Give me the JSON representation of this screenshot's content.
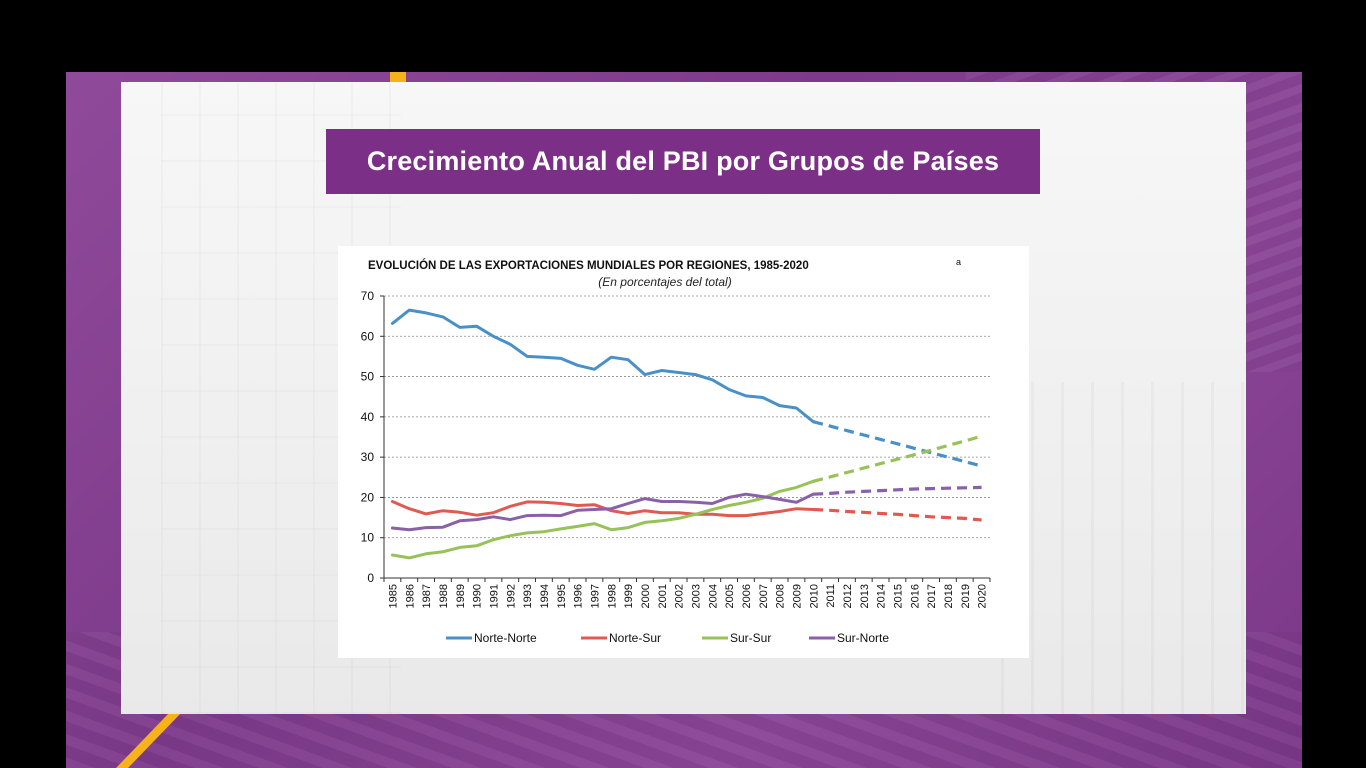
{
  "slide": {
    "title": "Crecimiento Anual del PBI por Grupos de Países"
  },
  "colors": {
    "slide_background": "#8a4596",
    "title_box": "#7b2f86",
    "accent": "#f5b21a"
  },
  "chart_data": {
    "type": "line",
    "title": "EVOLUCIÓN DE LAS EXPORTACIONES MUNDIALES POR REGIONES, 1985-2020",
    "title_superscript": "a",
    "subtitle": "(En porcentajes del total)",
    "ylim": [
      0,
      70
    ],
    "yticks": [
      0,
      10,
      20,
      30,
      40,
      50,
      60,
      70
    ],
    "grid": "horizontal dashed",
    "legend_position": "bottom",
    "x": [
      1985,
      1986,
      1987,
      1988,
      1989,
      1990,
      1991,
      1992,
      1993,
      1994,
      1995,
      1996,
      1997,
      1998,
      1999,
      2000,
      2001,
      2002,
      2003,
      2004,
      2005,
      2006,
      2007,
      2008,
      2009,
      2010,
      2011,
      2012,
      2013,
      2014,
      2015,
      2016,
      2017,
      2018,
      2019,
      2020
    ],
    "projection_from": 2010,
    "series": [
      {
        "name": "Norte-Norte",
        "color": "#4a90c8",
        "values": [
          63.2,
          66.5,
          65.8,
          64.8,
          62.2,
          62.5,
          60,
          58,
          55,
          54.8,
          54.5,
          52.8,
          51.8,
          54.8,
          54.2,
          50.5,
          51.5,
          51,
          50.5,
          49.2,
          46.8,
          45.2,
          44.8,
          42.8,
          42.2,
          38.8,
          37.7,
          36.6,
          35.5,
          34.4,
          33.3,
          32.2,
          31.1,
          30,
          28.9,
          27.8
        ]
      },
      {
        "name": "Norte-Sur",
        "color": "#e05a50",
        "values": [
          19,
          17.2,
          15.9,
          16.7,
          16.3,
          15.6,
          16.2,
          17.8,
          18.9,
          18.8,
          18.5,
          18,
          18.2,
          16.7,
          16,
          16.7,
          16.2,
          16.2,
          15.8,
          15.8,
          15.5,
          15.5,
          16,
          16.5,
          17.2,
          17,
          16.8,
          16.5,
          16.3,
          16,
          15.8,
          15.5,
          15.2,
          15,
          14.8,
          14.4
        ]
      },
      {
        "name": "Sur-Sur",
        "color": "#97c258",
        "values": [
          5.7,
          5,
          6,
          6.5,
          7.6,
          8,
          9.5,
          10.5,
          11.2,
          11.5,
          12.2,
          12.8,
          13.5,
          12,
          12.5,
          13.8,
          14.2,
          14.8,
          15.8,
          17,
          18,
          18.8,
          19.8,
          21.5,
          22.5,
          24,
          25.1,
          26.2,
          27.3,
          28.4,
          29.5,
          30.6,
          31.7,
          32.9,
          34,
          35.2
        ]
      },
      {
        "name": "Sur-Norte",
        "color": "#8a60a8",
        "values": [
          12.4,
          12,
          12.5,
          12.6,
          14.2,
          14.5,
          15.2,
          14.5,
          15.5,
          15.6,
          15.5,
          16.8,
          17,
          17.2,
          18.5,
          19.7,
          19,
          19,
          18.8,
          18.5,
          20,
          20.8,
          20.2,
          19.5,
          18.8,
          20.8,
          21,
          21.3,
          21.5,
          21.7,
          21.9,
          22.1,
          22.2,
          22.3,
          22.4,
          22.5
        ]
      }
    ]
  }
}
